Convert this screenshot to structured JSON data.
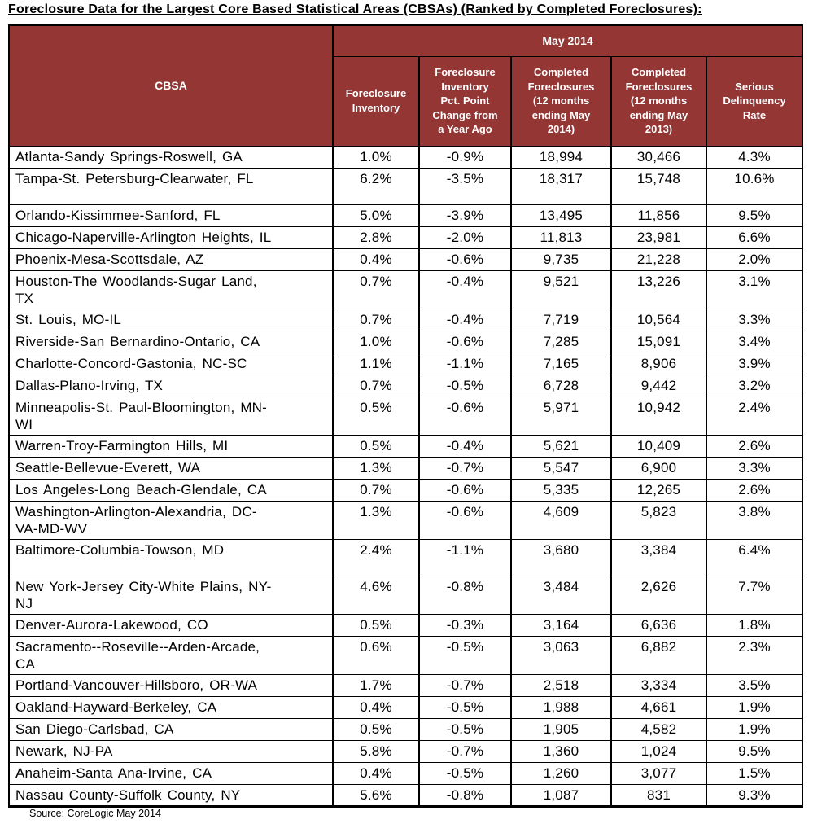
{
  "title": "Foreclosure Data for the Largest Core Based Statistical Areas (CBSAs) (Ranked by Completed Foreclosures):",
  "source": "Source: CoreLogic May 2014",
  "colors": {
    "header_bg": "#943634",
    "header_text": "#ffffff",
    "border": "#000000"
  },
  "table": {
    "cbsa_header": "CBSA",
    "group_header": "May 2014",
    "columns": [
      "Foreclosure\nInventory",
      "Foreclosure\nInventory\nPct. Point\nChange from\na Year Ago",
      "Completed\nForeclosures\n(12 months\nending May\n2014)",
      "Completed\nForeclosures\n(12 months\nending May\n2013)",
      "Serious\nDelinquency\nRate"
    ],
    "rows": [
      {
        "cbsa": "Atlanta-Sandy Springs-Roswell, GA",
        "values": [
          "1.0%",
          "-0.9%",
          "18,994",
          "30,466",
          "4.3%"
        ],
        "tall": false
      },
      {
        "cbsa": "Tampa-St. Petersburg-Clearwater, FL",
        "values": [
          "6.2%",
          "-3.5%",
          "18,317",
          "15,748",
          "10.6%"
        ],
        "tall": true
      },
      {
        "cbsa": "Orlando-Kissimmee-Sanford, FL",
        "values": [
          "5.0%",
          "-3.9%",
          "13,495",
          "11,856",
          "9.5%"
        ],
        "tall": false
      },
      {
        "cbsa": "Chicago-Naperville-Arlington Heights, IL",
        "values": [
          "2.8%",
          "-2.0%",
          "11,813",
          "23,981",
          "6.6%"
        ],
        "tall": false
      },
      {
        "cbsa": "Phoenix-Mesa-Scottsdale, AZ",
        "values": [
          "0.4%",
          "-0.6%",
          "9,735",
          "21,228",
          "2.0%"
        ],
        "tall": false
      },
      {
        "cbsa": "Houston-The Woodlands-Sugar Land,\nTX",
        "values": [
          "0.7%",
          "-0.4%",
          "9,521",
          "13,226",
          "3.1%"
        ],
        "tall": false
      },
      {
        "cbsa": "St. Louis, MO-IL",
        "values": [
          "0.7%",
          "-0.4%",
          "7,719",
          "10,564",
          "3.3%"
        ],
        "tall": false
      },
      {
        "cbsa": "Riverside-San Bernardino-Ontario, CA",
        "values": [
          "1.0%",
          "-0.6%",
          "7,285",
          "15,091",
          "3.4%"
        ],
        "tall": false
      },
      {
        "cbsa": "Charlotte-Concord-Gastonia, NC-SC",
        "values": [
          "1.1%",
          "-1.1%",
          "7,165",
          "8,906",
          "3.9%"
        ],
        "tall": false
      },
      {
        "cbsa": "Dallas-Plano-Irving, TX",
        "values": [
          "0.7%",
          "-0.5%",
          "6,728",
          "9,442",
          "3.2%"
        ],
        "tall": false
      },
      {
        "cbsa": "Minneapolis-St. Paul-Bloomington, MN-\nWI",
        "values": [
          "0.5%",
          "-0.6%",
          "5,971",
          "10,942",
          "2.4%"
        ],
        "tall": false
      },
      {
        "cbsa": "Warren-Troy-Farmington Hills, MI",
        "values": [
          "0.5%",
          "-0.4%",
          "5,621",
          "10,409",
          "2.6%"
        ],
        "tall": false
      },
      {
        "cbsa": "Seattle-Bellevue-Everett, WA",
        "values": [
          "1.3%",
          "-0.7%",
          "5,547",
          "6,900",
          "3.3%"
        ],
        "tall": false
      },
      {
        "cbsa": "Los Angeles-Long Beach-Glendale, CA",
        "values": [
          "0.7%",
          "-0.6%",
          "5,335",
          "12,265",
          "2.6%"
        ],
        "tall": false
      },
      {
        "cbsa": "Washington-Arlington-Alexandria, DC-\nVA-MD-WV",
        "values": [
          "1.3%",
          "-0.6%",
          "4,609",
          "5,823",
          "3.8%"
        ],
        "tall": false
      },
      {
        "cbsa": "Baltimore-Columbia-Towson, MD",
        "values": [
          "2.4%",
          "-1.1%",
          "3,680",
          "3,384",
          "6.4%"
        ],
        "tall": true
      },
      {
        "cbsa": "New York-Jersey City-White Plains, NY-\nNJ",
        "values": [
          "4.6%",
          "-0.8%",
          "3,484",
          "2,626",
          "7.7%"
        ],
        "tall": false
      },
      {
        "cbsa": "Denver-Aurora-Lakewood, CO",
        "values": [
          "0.5%",
          "-0.3%",
          "3,164",
          "6,636",
          "1.8%"
        ],
        "tall": false
      },
      {
        "cbsa": "Sacramento--Roseville--Arden-Arcade,\nCA",
        "values": [
          "0.6%",
          "-0.5%",
          "3,063",
          "6,882",
          "2.3%"
        ],
        "tall": false
      },
      {
        "cbsa": "Portland-Vancouver-Hillsboro, OR-WA",
        "values": [
          "1.7%",
          "-0.7%",
          "2,518",
          "3,334",
          "3.5%"
        ],
        "tall": false
      },
      {
        "cbsa": "Oakland-Hayward-Berkeley, CA",
        "values": [
          "0.4%",
          "-0.5%",
          "1,988",
          "4,661",
          "1.9%"
        ],
        "tall": false
      },
      {
        "cbsa": "San Diego-Carlsbad, CA",
        "values": [
          "0.5%",
          "-0.5%",
          "1,905",
          "4,582",
          "1.9%"
        ],
        "tall": false
      },
      {
        "cbsa": "Newark, NJ-PA",
        "values": [
          "5.8%",
          "-0.7%",
          "1,360",
          "1,024",
          "9.5%"
        ],
        "tall": false
      },
      {
        "cbsa": "Anaheim-Santa Ana-Irvine, CA",
        "values": [
          "0.4%",
          "-0.5%",
          "1,260",
          "3,077",
          "1.5%"
        ],
        "tall": false
      },
      {
        "cbsa": "Nassau County-Suffolk County, NY",
        "values": [
          "5.6%",
          "-0.8%",
          "1,087",
          "831",
          "9.3%"
        ],
        "tall": false
      }
    ]
  }
}
